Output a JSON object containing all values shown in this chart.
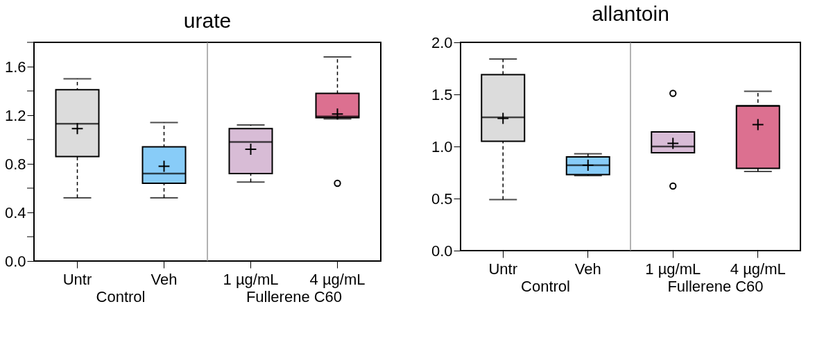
{
  "chart_data": [
    {
      "type": "box",
      "title": "urate",
      "categories": [
        "Untr",
        "Veh",
        "1 µg/mL",
        "4 µg/mL"
      ],
      "annotations": [
        "Control",
        "Fullerene C60"
      ],
      "colors": [
        "#dcdcdc",
        "#88ccf8",
        "#d8bcd6",
        "#dc7090"
      ],
      "boxes": [
        {
          "low": 0.52,
          "q1": 0.86,
          "median": 1.13,
          "q3": 1.41,
          "high": 1.5,
          "mean": 1.09
        },
        {
          "low": 0.52,
          "q1": 0.64,
          "median": 0.72,
          "q3": 0.94,
          "high": 1.14,
          "mean": 0.78
        },
        {
          "low": 0.65,
          "q1": 0.72,
          "median": 0.98,
          "q3": 1.09,
          "high": 1.12,
          "mean": 0.92
        },
        {
          "low": 1.17,
          "q1": 1.18,
          "median": 1.19,
          "q3": 1.38,
          "high": 1.68,
          "mean": 1.21,
          "outliers": [
            0.64
          ]
        }
      ],
      "ylim": [
        0,
        1.8
      ],
      "yticks": [
        {
          "value": 0,
          "label": "0.0"
        },
        {
          "value": 0.2,
          "label": null
        },
        0.4,
        {
          "value": 0.6,
          "label": null
        },
        0.8,
        {
          "value": 1.0,
          "label": null
        },
        1.2,
        {
          "value": 1.4,
          "label": null
        },
        1.6,
        {
          "value": 1.8,
          "label": null
        }
      ],
      "grid": false,
      "marker": "cross"
    },
    {
      "type": "box",
      "title": "allantoin",
      "categories": [
        "Untr",
        "Veh",
        "1 µg/mL",
        "4 µg/mL"
      ],
      "annotations": [
        "Control",
        "Fullerene C60"
      ],
      "colors": [
        "#dcdcdc",
        "#88ccf8",
        "#d8bcd6",
        "#dc7090"
      ],
      "boxes": [
        {
          "low": 0.49,
          "q1": 1.05,
          "median": 1.28,
          "q3": 1.69,
          "high": 1.84,
          "mean": 1.27
        },
        {
          "low": 0.72,
          "q1": 0.73,
          "median": 0.82,
          "q3": 0.9,
          "high": 0.93,
          "mean": 0.82
        },
        {
          "low": 0.94,
          "q1": 0.94,
          "median": 1.0,
          "q3": 1.14,
          "high": 1.14,
          "mean": 1.03,
          "outliers": [
            1.51,
            0.62
          ]
        },
        {
          "low": 0.76,
          "q1": 0.79,
          "median": 1.39,
          "q3": 1.39,
          "high": 1.53,
          "mean": 1.21
        }
      ],
      "ylim": [
        0,
        2
      ],
      "yticks": [
        {
          "value": 0,
          "label": "0.0"
        },
        0.5,
        {
          "value": 1,
          "label": "1.0"
        },
        1.5,
        {
          "value": 2,
          "label": "2.0"
        }
      ],
      "grid": false,
      "marker": "cross"
    }
  ]
}
